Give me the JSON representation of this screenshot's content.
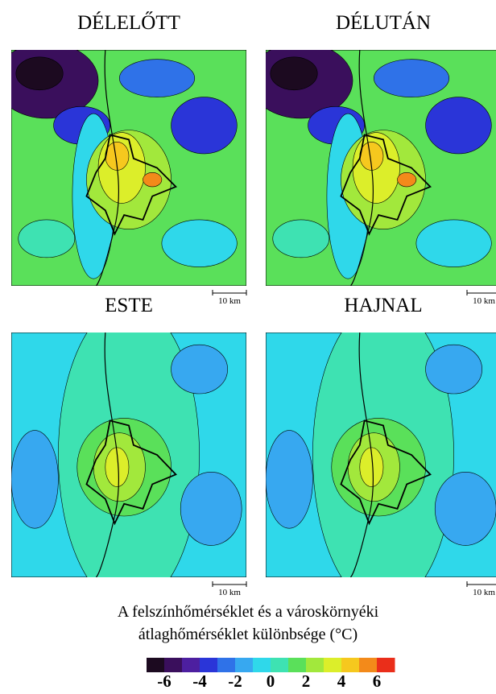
{
  "panels": [
    {
      "title": "DÉLELŐTT",
      "scale": "10 km"
    },
    {
      "title": "DÉLUTÁN",
      "scale": "10 km"
    },
    {
      "title": "ESTE",
      "scale": "10 km"
    },
    {
      "title": "HAJNAL",
      "scale": "10 km"
    }
  ],
  "caption": [
    "A felszínhőmérséklet és a városkörnyéki",
    "átlaghőmérséklet különbsége (°C)"
  ],
  "colorbar": {
    "lim": [
      -7,
      7
    ],
    "ticks": [
      -6,
      -4,
      -2,
      0,
      2,
      4,
      6
    ],
    "colors": [
      "#1c0a20",
      "#3a0f5c",
      "#4d1fa0",
      "#2a35d8",
      "#2f72e8",
      "#37a8f0",
      "#2fd8ea",
      "#3ee2b2",
      "#5ae05a",
      "#a2e83c",
      "#dcee2a",
      "#f6c81e",
      "#f38a1a",
      "#ea2e1a"
    ]
  }
}
